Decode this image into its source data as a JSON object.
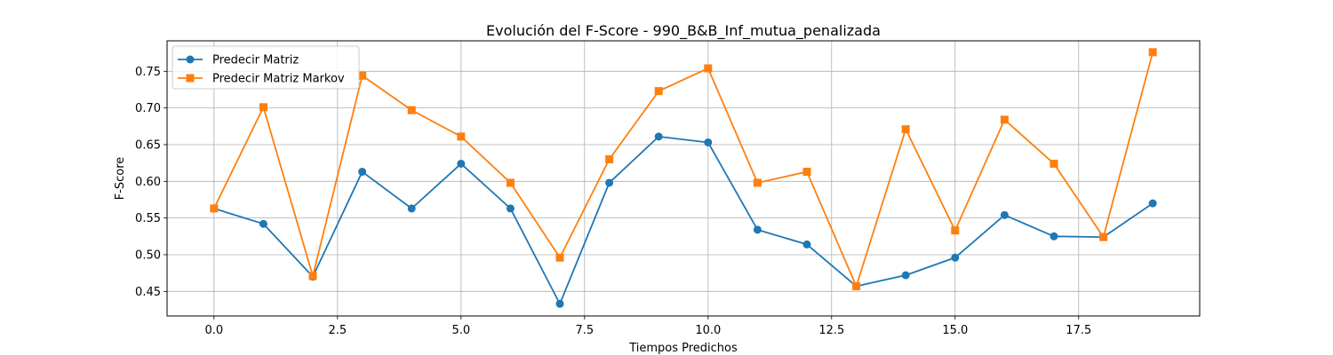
{
  "chart_data": {
    "type": "line",
    "title": "Evolución del F-Score - 990_B&B_Inf_mutua_penalizada",
    "xlabel": "Tiempos Predichos",
    "ylabel": "F-Score",
    "xlim": [
      -0.95,
      19.95
    ],
    "ylim": [
      0.4165,
      0.7915
    ],
    "x_ticks": [
      0.0,
      2.5,
      5.0,
      7.5,
      10.0,
      12.5,
      15.0,
      17.5
    ],
    "x_tick_labels": [
      "0.0",
      "2.5",
      "5.0",
      "7.5",
      "10.0",
      "12.5",
      "15.0",
      "17.5"
    ],
    "y_ticks": [
      0.45,
      0.5,
      0.55,
      0.6,
      0.65,
      0.7,
      0.75
    ],
    "y_tick_labels": [
      "0.45",
      "0.50",
      "0.55",
      "0.60",
      "0.65",
      "0.70",
      "0.75"
    ],
    "grid": true,
    "legend_position": "top-left",
    "x": [
      0,
      1,
      2,
      3,
      4,
      5,
      6,
      7,
      8,
      9,
      10,
      11,
      12,
      13,
      14,
      15,
      16,
      17,
      18,
      19
    ],
    "series": [
      {
        "name": "Predecir Matriz",
        "color": "#1f77b4",
        "marker": "circle",
        "values": [
          0.563,
          0.542,
          0.47,
          0.613,
          0.563,
          0.624,
          0.563,
          0.433,
          0.598,
          0.661,
          0.653,
          0.534,
          0.514,
          0.457,
          0.472,
          0.496,
          0.554,
          0.525,
          0.524,
          0.57
        ]
      },
      {
        "name": "Predecir Matriz Markov",
        "color": "#ff7f0e",
        "marker": "square",
        "values": [
          0.563,
          0.701,
          0.471,
          0.744,
          0.697,
          0.661,
          0.598,
          0.496,
          0.63,
          0.723,
          0.754,
          0.598,
          0.613,
          0.457,
          0.671,
          0.533,
          0.684,
          0.624,
          0.524,
          0.776
        ]
      }
    ]
  }
}
